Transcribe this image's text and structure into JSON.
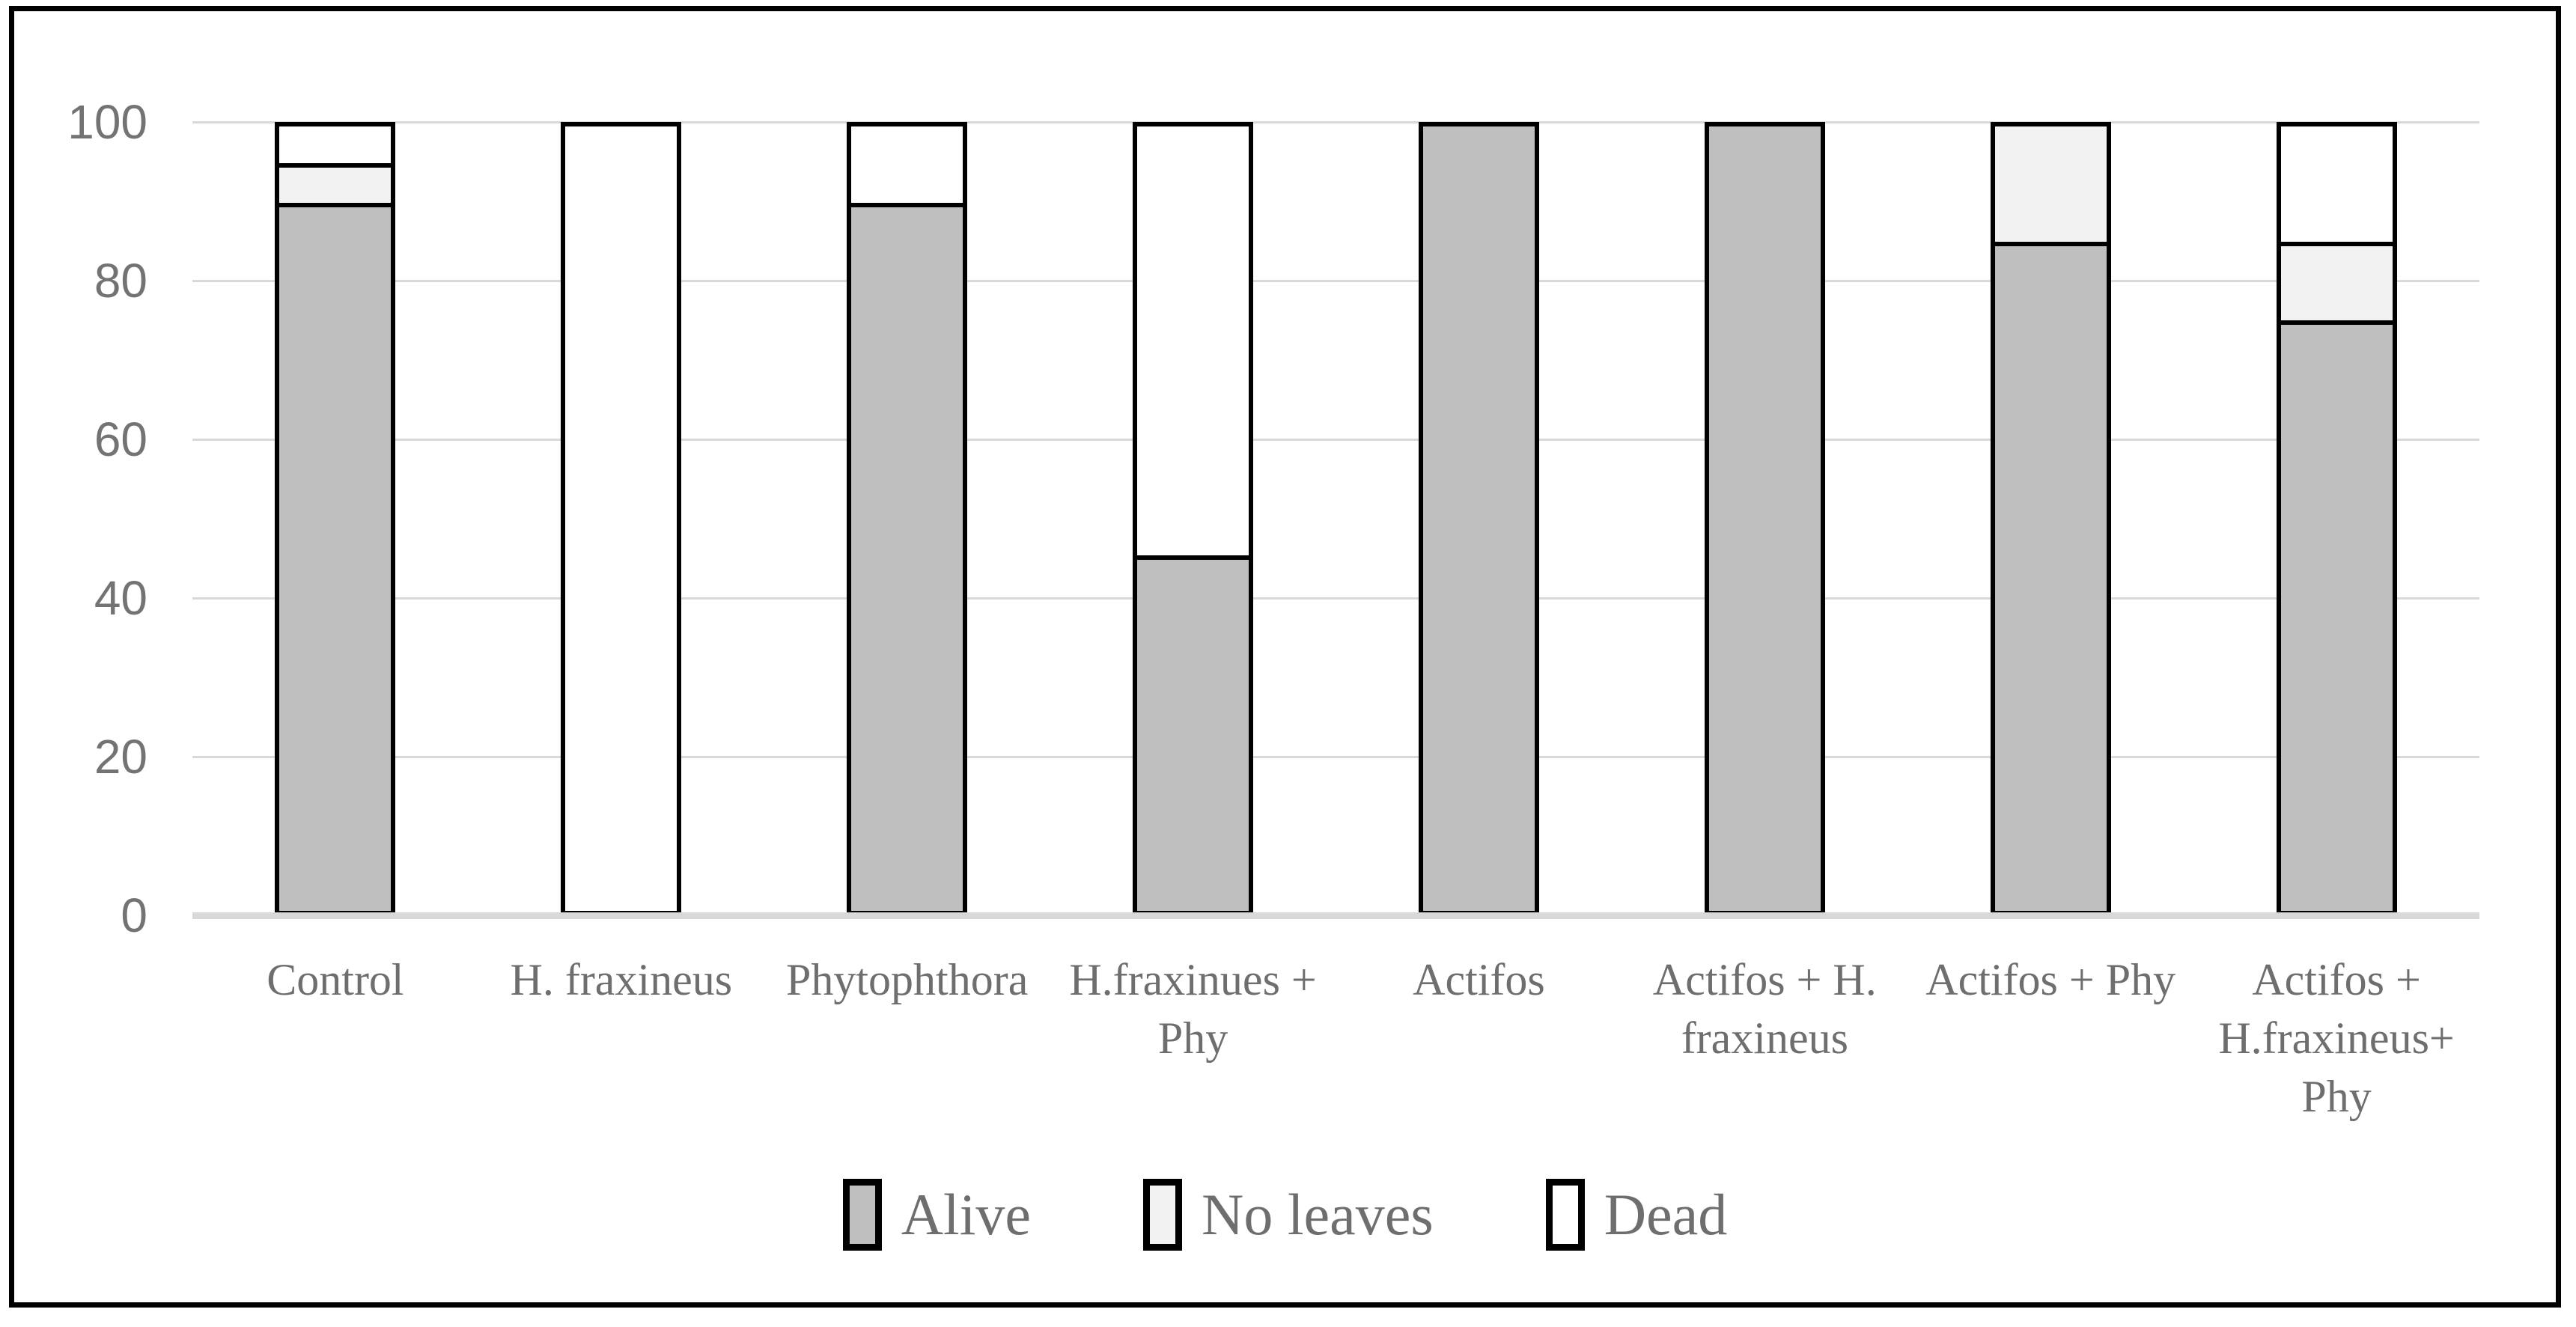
{
  "chart_data": {
    "type": "bar",
    "stacked": true,
    "title": "",
    "xlabel": "",
    "ylabel": "",
    "ylim": [
      0,
      100
    ],
    "yticks": [
      0,
      20,
      40,
      60,
      80,
      100
    ],
    "grid": true,
    "legend_position": "bottom",
    "categories": [
      "Control",
      "H. fraxineus",
      "Phytophthora",
      "H.fraxinues +\nPhy",
      "Actifos",
      "Actifos + H.\nfraxineus",
      "Actifos + Phy",
      "Actifos +\nH.fraxineus+\nPhy"
    ],
    "series": [
      {
        "name": "Alive",
        "color": "#bfbfbf",
        "values": [
          90,
          0,
          90,
          45,
          100,
          100,
          85,
          75
        ]
      },
      {
        "name": "No leaves",
        "color": "#f2f2f2",
        "values": [
          5,
          0,
          0,
          0,
          0,
          0,
          15,
          10
        ]
      },
      {
        "name": "Dead",
        "color": "#ffffff",
        "values": [
          5,
          100,
          10,
          55,
          0,
          0,
          0,
          15
        ]
      }
    ]
  },
  "style_colors": {
    "figure_border": "#000000",
    "bar_border": "#000000",
    "gridline": "#d9d9d9",
    "axis_line": "#d9d9d9",
    "tick_text": "#737373",
    "label_text": "#6e6e6e"
  }
}
